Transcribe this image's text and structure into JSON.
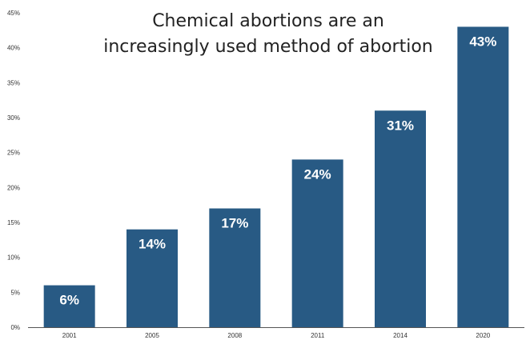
{
  "chart_data": {
    "type": "bar",
    "title_lines": [
      "Chemical abortions are an",
      "increasingly used method of abortion"
    ],
    "xlabel": "",
    "ylabel": "",
    "categories": [
      "2001",
      "2005",
      "2008",
      "2011",
      "2014",
      "2020"
    ],
    "values": [
      6,
      14,
      17,
      24,
      31,
      43
    ],
    "data_labels": [
      "6%",
      "14%",
      "17%",
      "24%",
      "31%",
      "43%"
    ],
    "ylim": [
      0,
      45
    ],
    "y_ticks": [
      0,
      5,
      10,
      15,
      20,
      25,
      30,
      35,
      40,
      45
    ],
    "y_tick_labels": [
      "0%",
      "5%",
      "10%",
      "15%",
      "20%",
      "25%",
      "30%",
      "35%",
      "40%",
      "45%"
    ],
    "grid": false,
    "legend": "none",
    "bar_color": "#285A84",
    "label_color": "#ffffff",
    "axis_color": "#555555",
    "tick_text_color": "#333333"
  }
}
